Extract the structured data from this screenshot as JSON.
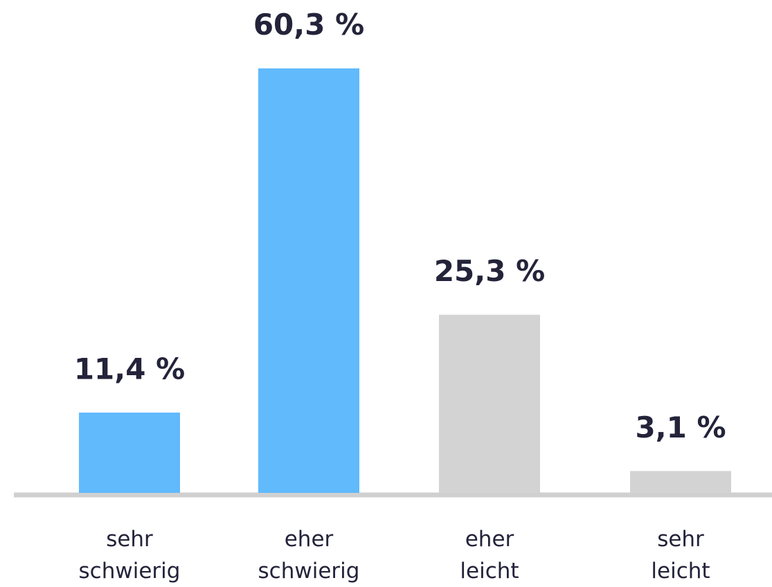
{
  "chart_data": {
    "type": "bar",
    "categories": [
      "sehr schwierig",
      "eher schwierig",
      "eher leicht",
      "sehr leicht"
    ],
    "values": [
      11.4,
      60.3,
      25.3,
      3.1
    ],
    "value_labels": [
      "11,4 %",
      "60,3 %",
      "25,3 %",
      "3,1 %"
    ],
    "colors": [
      "#60bafc",
      "#60bafc",
      "#d3d3d3",
      "#d3d3d3"
    ]
  }
}
